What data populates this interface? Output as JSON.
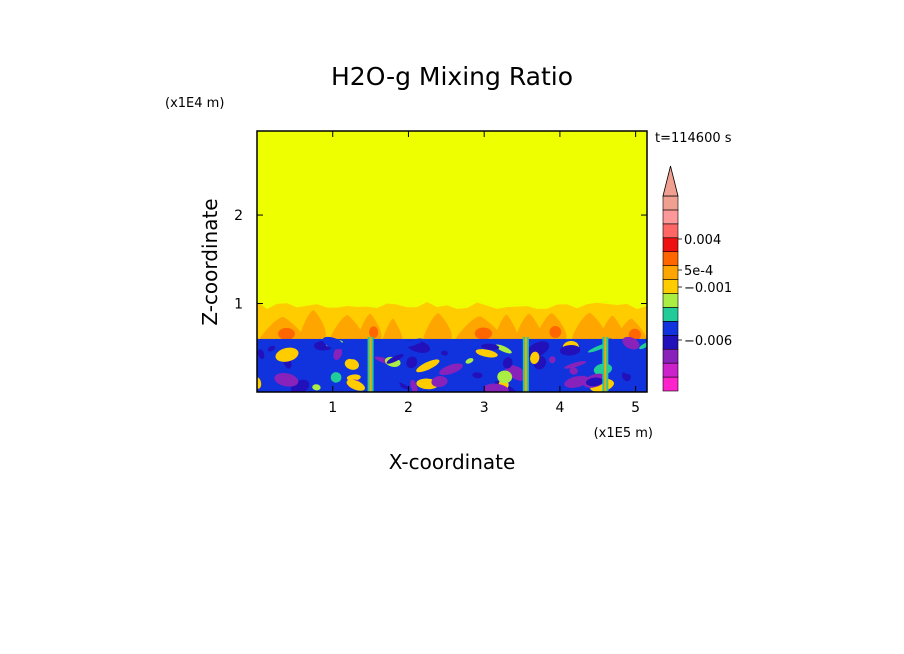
{
  "chart_data": {
    "type": "heatmap",
    "title": "H2O-g Mixing Ratio",
    "xlabel": "X-coordinate",
    "ylabel": "Z-coordinate",
    "x_scale_label": "(x1E5 m)",
    "y_scale_label": "(x1E4 m)",
    "time_label": "t=114600 s",
    "xlim": [
      0,
      5.15
    ],
    "ylim": [
      0,
      2.95
    ],
    "x_ticks": [
      "1",
      "2",
      "3",
      "4",
      "5"
    ],
    "x_tick_values": [
      1,
      2,
      3,
      4,
      5
    ],
    "y_ticks": [
      "1",
      "2"
    ],
    "y_tick_values": [
      1,
      2
    ],
    "colorbar": {
      "labels": [
        {
          "text": "0.004",
          "level": 0.004
        },
        {
          "text": "5e-4",
          "level": 0.0005
        },
        {
          "text": "−0.001",
          "level": -0.001
        },
        {
          "text": "−0.006",
          "level": -0.006
        }
      ],
      "colors": [
        "#ff22cc",
        "#cc22cc",
        "#8822bb",
        "#2211bb",
        "#1133dd",
        "#22cc99",
        "#aaee44",
        "#ffcc00",
        "#ffa500",
        "#ff6600",
        "#ee1111",
        "#ff6666",
        "#ff9999",
        "#f0a090"
      ]
    },
    "regions": [
      {
        "name": "upper",
        "z_range": [
          1.0,
          2.95
        ],
        "color": "#eeff00"
      },
      {
        "name": "transition",
        "z_range": [
          0.6,
          1.0
        ],
        "color": "#ffcc00"
      },
      {
        "name": "lower",
        "z_range": [
          0,
          0.6
        ],
        "color": "#1133dd"
      }
    ],
    "background_color": "#eeff00"
  }
}
